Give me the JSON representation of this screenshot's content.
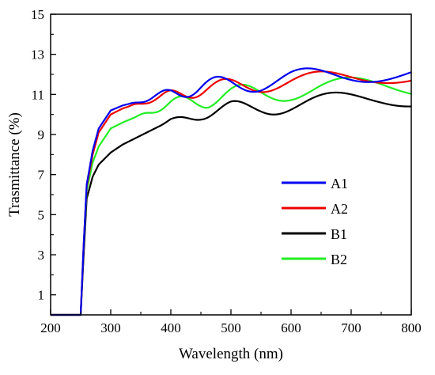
{
  "chart_data": {
    "type": "line",
    "xlabel": "Wavelength (nm)",
    "ylabel": "Trasmittance (%)",
    "xlim": [
      200,
      800
    ],
    "ylim": [
      0,
      15
    ],
    "xticks": [
      200,
      300,
      400,
      500,
      600,
      700,
      800
    ],
    "yticks": [
      1,
      3,
      5,
      7,
      9,
      11,
      13,
      15
    ],
    "grid": false,
    "legend_position": "center-right",
    "x": [
      200,
      240,
      250,
      255,
      260,
      270,
      280,
      300,
      320,
      340,
      360,
      380,
      400,
      450,
      500,
      550,
      600,
      650,
      700,
      750,
      800
    ],
    "series": [
      {
        "name": "A1",
        "color": "#0000ee",
        "values": [
          0,
          0,
          0,
          3.5,
          6.5,
          8.2,
          9.3,
          10.2,
          10.45,
          10.6,
          10.75,
          10.9,
          11.1,
          11.35,
          11.5,
          11.6,
          11.8,
          11.9,
          12.0,
          12.1,
          12.2
        ],
        "fringe_amplitude": 0.45,
        "fringe_start": 330
      },
      {
        "name": "A2",
        "color": "#ee0000",
        "values": [
          0,
          0,
          0,
          3.5,
          6.4,
          8.0,
          9.1,
          10.0,
          10.3,
          10.5,
          10.65,
          10.8,
          11.0,
          11.25,
          11.4,
          11.5,
          11.65,
          11.75,
          11.85,
          11.95,
          12.0
        ],
        "fringe_amplitude": 0.4,
        "fringe_start": 330
      },
      {
        "name": "B1",
        "color": "#000000",
        "values": [
          0,
          0,
          0,
          3.0,
          5.8,
          6.9,
          7.5,
          8.1,
          8.5,
          8.8,
          9.1,
          9.4,
          9.7,
          10.0,
          10.2,
          10.4,
          10.5,
          10.6,
          10.7,
          10.8,
          10.85
        ],
        "fringe_amplitude": 0.45,
        "fringe_start": 380
      },
      {
        "name": "B2",
        "color": "#22ee22",
        "values": [
          0,
          0,
          0,
          3.4,
          6.2,
          7.6,
          8.4,
          9.3,
          9.6,
          9.85,
          10.1,
          10.3,
          10.5,
          10.8,
          10.95,
          11.05,
          11.2,
          11.3,
          11.35,
          11.4,
          11.4
        ],
        "fringe_amplitude": 0.5,
        "fringe_start": 340
      }
    ]
  }
}
